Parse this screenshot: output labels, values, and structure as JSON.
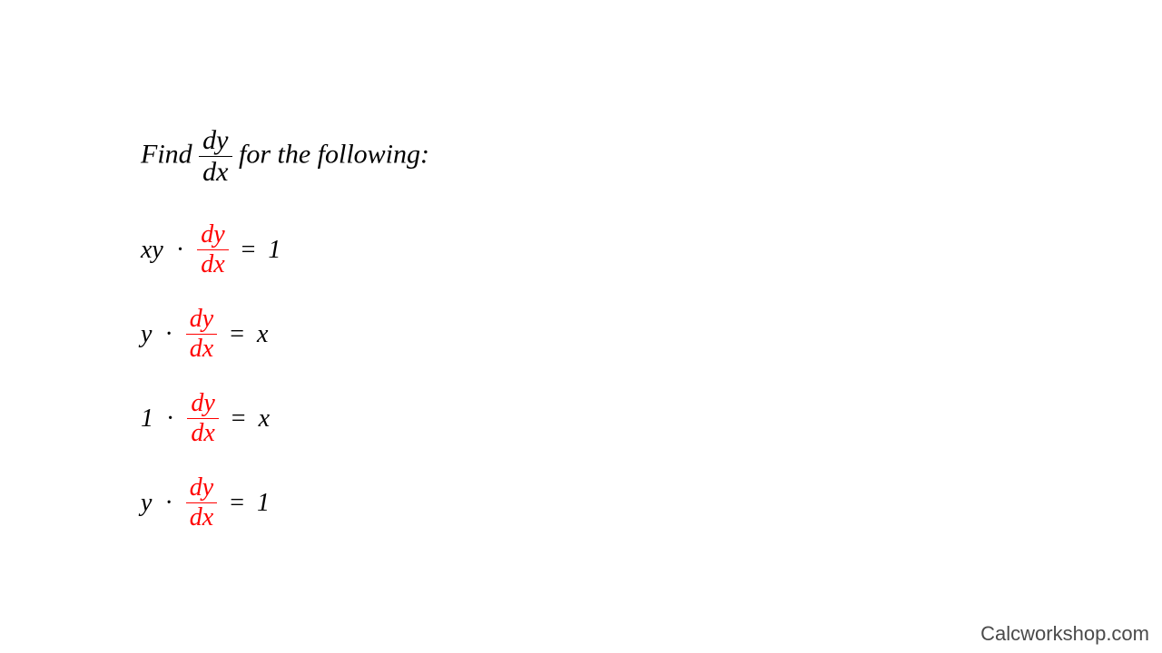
{
  "heading_prefix": "Find ",
  "heading_suffix": " for the following:",
  "accent_num": "dy",
  "accent_den": "dx",
  "accent_color": "#ff0000",
  "text_color": "#000000",
  "background_color": "#ffffff",
  "heading_fontsize": 30,
  "equation_fontsize": 28,
  "lines": [
    {
      "left_text": "xy",
      "right_text": "1"
    },
    {
      "left_text": "y",
      "right_text": "x"
    },
    {
      "left_text": "1",
      "right_text": "x"
    },
    {
      "left_text": "y",
      "right_text": "1"
    }
  ],
  "watermark": "Calcworkshop.com",
  "watermark_color": "#4a4a4a"
}
